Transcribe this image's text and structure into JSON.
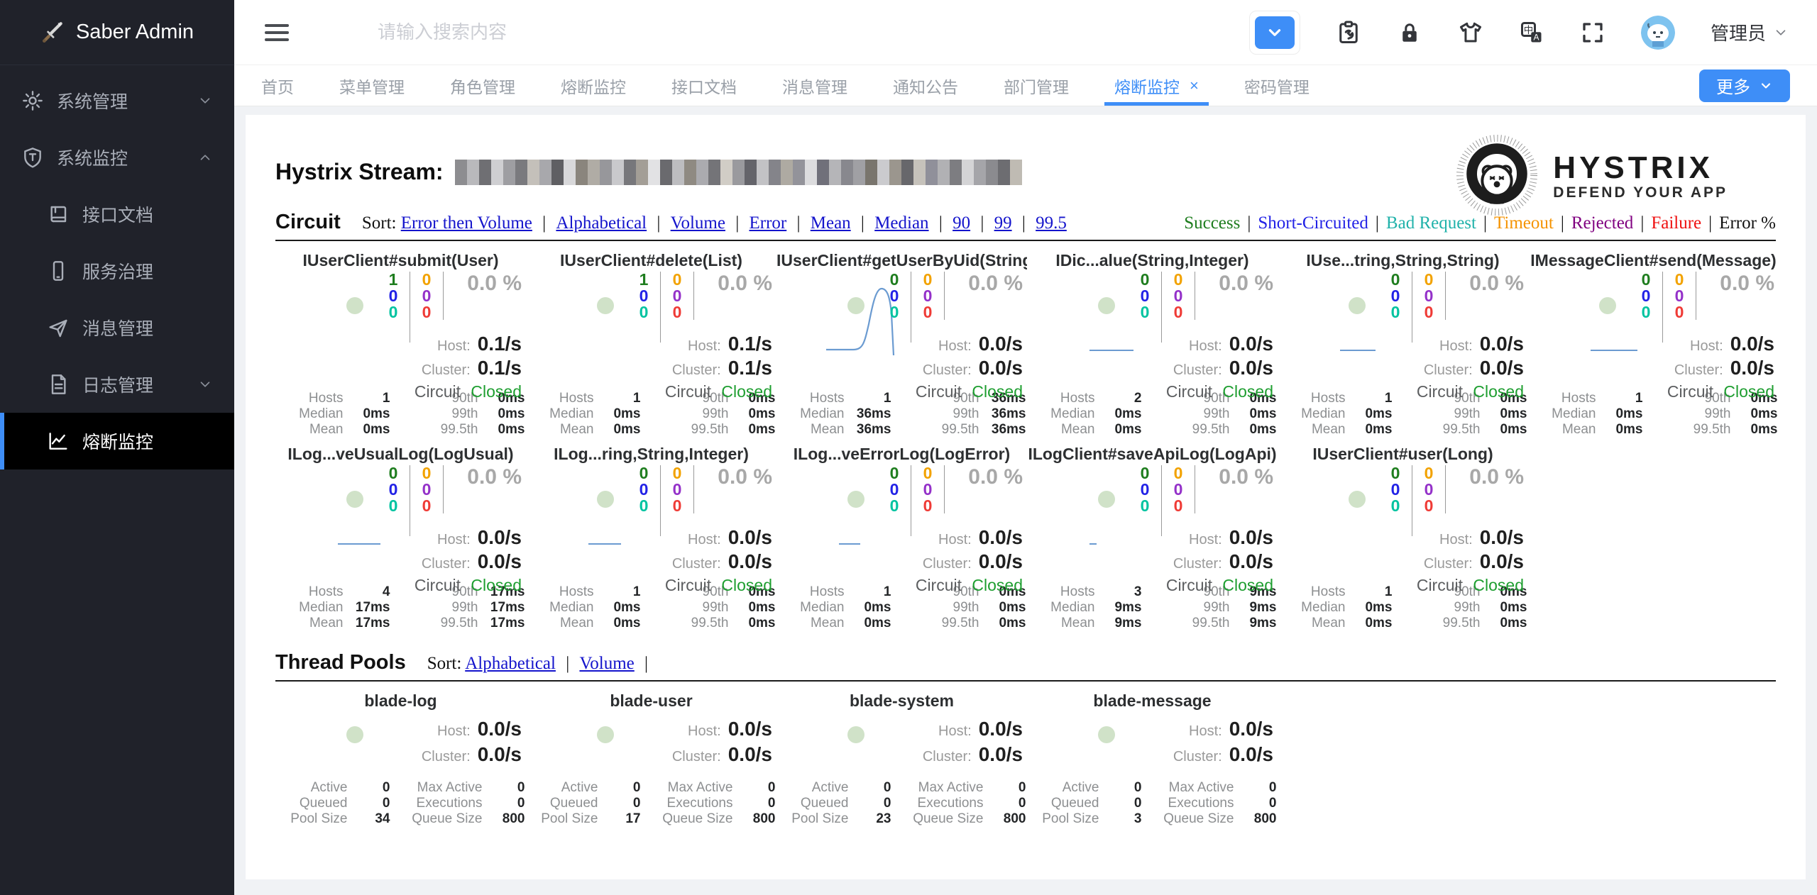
{
  "sidebar": {
    "logo_text": "Saber Admin",
    "menu": [
      {
        "label": "系统管理",
        "icon": "gear-icon",
        "expanded": false
      },
      {
        "label": "系统监控",
        "icon": "shield-icon",
        "expanded": true,
        "children": [
          {
            "label": "接口文档",
            "icon": "book-icon"
          },
          {
            "label": "服务治理",
            "icon": "phone-icon"
          },
          {
            "label": "消息管理",
            "icon": "send-icon"
          },
          {
            "label": "日志管理",
            "icon": "file-icon",
            "has_children": true
          },
          {
            "label": "熔断监控",
            "icon": "chart-icon",
            "active": true
          }
        ]
      }
    ]
  },
  "header": {
    "search_placeholder": "请输入搜索内容",
    "username": "管理员",
    "icons": [
      "collapse-dropdown",
      "maintenance",
      "lock",
      "theme",
      "language",
      "fullscreen"
    ]
  },
  "tabs": {
    "items": [
      {
        "label": "首页"
      },
      {
        "label": "菜单管理"
      },
      {
        "label": "角色管理"
      },
      {
        "label": "熔断监控"
      },
      {
        "label": "接口文档"
      },
      {
        "label": "消息管理"
      },
      {
        "label": "通知公告"
      },
      {
        "label": "部门管理"
      },
      {
        "label": "熔断监控",
        "active": true,
        "closable": true
      },
      {
        "label": "密码管理"
      }
    ],
    "close_label": "×",
    "more_label": "更多"
  },
  "hystrix": {
    "stream_title": "Hystrix Stream:",
    "logo_title": "HYSTRIX",
    "logo_subtitle": "DEFEND YOUR APP",
    "circuit_heading": "Circuit",
    "sort_label": "Sort:",
    "circuit_sort_options": [
      "Error then Volume",
      "Alphabetical",
      "Volume",
      "Error",
      "Mean",
      "Median",
      "90",
      "99",
      "99.5"
    ],
    "legend": [
      {
        "label": "Success",
        "color": "#1e7d1e"
      },
      {
        "label": "Short-Circuited",
        "color": "#2222e6"
      },
      {
        "label": "Bad Request",
        "color": "#20b2aa"
      },
      {
        "label": "Timeout",
        "color": "#f59300"
      },
      {
        "label": "Rejected",
        "color": "#800080"
      },
      {
        "label": "Failure",
        "color": "#ef1010"
      },
      {
        "label": "Error %",
        "color": "#111111"
      }
    ],
    "thread_pools_heading": "Thread Pools",
    "pool_sort_options": [
      "Alphabetical",
      "Volume"
    ],
    "labels": {
      "host": "Host:",
      "cluster": "Cluster:",
      "circuit": "Circuit",
      "hosts": "Hosts",
      "median": "Median",
      "mean": "Mean",
      "p90": "90th",
      "p99": "99th",
      "p995": "99.5th",
      "active": "Active",
      "queued": "Queued",
      "pool_size": "Pool Size",
      "max_active": "Max Active",
      "executions": "Executions",
      "queue_size": "Queue Size"
    }
  },
  "circuits": [
    {
      "name": "IUserClient#submit(User)",
      "counters": [
        "1",
        "0",
        "0",
        "0",
        "0",
        "0"
      ],
      "error_pct": "0.0 %",
      "host_rate": "0.1/s",
      "cluster_rate": "0.1/s",
      "status": "Closed",
      "hosts": "1",
      "median": "0ms",
      "mean": "0ms",
      "p90": "0ms",
      "p99": "0ms",
      "p995": "0ms",
      "spark": "none"
    },
    {
      "name": "IUserClient#delete(List)",
      "counters": [
        "1",
        "0",
        "0",
        "0",
        "0",
        "0"
      ],
      "error_pct": "0.0 %",
      "host_rate": "0.1/s",
      "cluster_rate": "0.1/s",
      "status": "Closed",
      "hosts": "1",
      "median": "0ms",
      "mean": "0ms",
      "p90": "0ms",
      "p99": "0ms",
      "p995": "0ms",
      "spark": "none"
    },
    {
      "name": "IUserClient#getUserByUid(String)",
      "counters": [
        "0",
        "0",
        "0",
        "0",
        "0",
        "0"
      ],
      "error_pct": "0.0 %",
      "host_rate": "0.0/s",
      "cluster_rate": "0.0/s",
      "status": "Closed",
      "hosts": "1",
      "median": "36ms",
      "mean": "36ms",
      "p90": "36ms",
      "p99": "36ms",
      "p995": "36ms",
      "spark": "curve"
    },
    {
      "name": "IDic...alue(String,Integer)",
      "counters": [
        "0",
        "0",
        "0",
        "0",
        "0",
        "0"
      ],
      "error_pct": "0.0 %",
      "host_rate": "0.0/s",
      "cluster_rate": "0.0/s",
      "status": "Closed",
      "hosts": "2",
      "median": "0ms",
      "mean": "0ms",
      "p90": "0ms",
      "p99": "0ms",
      "p995": "0ms",
      "spark": 62
    },
    {
      "name": "IUse...tring,String,String)",
      "counters": [
        "0",
        "0",
        "0",
        "0",
        "0",
        "0"
      ],
      "error_pct": "0.0 %",
      "host_rate": "0.0/s",
      "cluster_rate": "0.0/s",
      "status": "Closed",
      "hosts": "1",
      "median": "0ms",
      "mean": "0ms",
      "p90": "0ms",
      "p99": "0ms",
      "p995": "0ms",
      "spark": 50
    },
    {
      "name": "IMessageClient#send(Message)",
      "counters": [
        "0",
        "0",
        "0",
        "0",
        "0",
        "0"
      ],
      "error_pct": "0.0 %",
      "host_rate": "0.0/s",
      "cluster_rate": "0.0/s",
      "status": "Closed",
      "hosts": "1",
      "median": "0ms",
      "mean": "0ms",
      "p90": "0ms",
      "p99": "0ms",
      "p995": "0ms",
      "spark": 66
    },
    {
      "name": "ILog...veUsualLog(LogUsual)",
      "counters": [
        "0",
        "0",
        "0",
        "0",
        "0",
        "0"
      ],
      "error_pct": "0.0 %",
      "host_rate": "0.0/s",
      "cluster_rate": "0.0/s",
      "status": "Closed",
      "hosts": "4",
      "median": "17ms",
      "mean": "17ms",
      "p90": "17ms",
      "p99": "17ms",
      "p995": "17ms",
      "spark": 60
    },
    {
      "name": "ILog...ring,String,Integer)",
      "counters": [
        "0",
        "0",
        "0",
        "0",
        "0",
        "0"
      ],
      "error_pct": "0.0 %",
      "host_rate": "0.0/s",
      "cluster_rate": "0.0/s",
      "status": "Closed",
      "hosts": "1",
      "median": "0ms",
      "mean": "0ms",
      "p90": "0ms",
      "p99": "0ms",
      "p995": "0ms",
      "spark": 46
    },
    {
      "name": "ILog...veErrorLog(LogError)",
      "counters": [
        "0",
        "0",
        "0",
        "0",
        "0",
        "0"
      ],
      "error_pct": "0.0 %",
      "host_rate": "0.0/s",
      "cluster_rate": "0.0/s",
      "status": "Closed",
      "hosts": "1",
      "median": "0ms",
      "mean": "0ms",
      "p90": "0ms",
      "p99": "0ms",
      "p995": "0ms",
      "spark": 30
    },
    {
      "name": "ILogClient#saveApiLog(LogApi)",
      "counters": [
        "0",
        "0",
        "0",
        "0",
        "0",
        "0"
      ],
      "error_pct": "0.0 %",
      "host_rate": "0.0/s",
      "cluster_rate": "0.0/s",
      "status": "Closed",
      "hosts": "3",
      "median": "9ms",
      "mean": "9ms",
      "p90": "9ms",
      "p99": "9ms",
      "p995": "9ms",
      "spark": 10
    },
    {
      "name": "IUserClient#user(Long)",
      "counters": [
        "0",
        "0",
        "0",
        "0",
        "0",
        "0"
      ],
      "error_pct": "0.0 %",
      "host_rate": "0.0/s",
      "cluster_rate": "0.0/s",
      "status": "Closed",
      "hosts": "1",
      "median": "0ms",
      "mean": "0ms",
      "p90": "0ms",
      "p99": "0ms",
      "p995": "0ms",
      "spark": "none"
    }
  ],
  "thread_pools": [
    {
      "name": "blade-log",
      "host_rate": "0.0/s",
      "cluster_rate": "0.0/s",
      "active": "0",
      "queued": "0",
      "pool_size": "34",
      "max_active": "0",
      "executions": "0",
      "queue_size": "800"
    },
    {
      "name": "blade-user",
      "host_rate": "0.0/s",
      "cluster_rate": "0.0/s",
      "active": "0",
      "queued": "0",
      "pool_size": "17",
      "max_active": "0",
      "executions": "0",
      "queue_size": "800"
    },
    {
      "name": "blade-system",
      "host_rate": "0.0/s",
      "cluster_rate": "0.0/s",
      "active": "0",
      "queued": "0",
      "pool_size": "23",
      "max_active": "0",
      "executions": "0",
      "queue_size": "800"
    },
    {
      "name": "blade-message",
      "host_rate": "0.0/s",
      "cluster_rate": "0.0/s",
      "active": "0",
      "queued": "0",
      "pool_size": "3",
      "max_active": "0",
      "executions": "0",
      "queue_size": "800"
    }
  ]
}
